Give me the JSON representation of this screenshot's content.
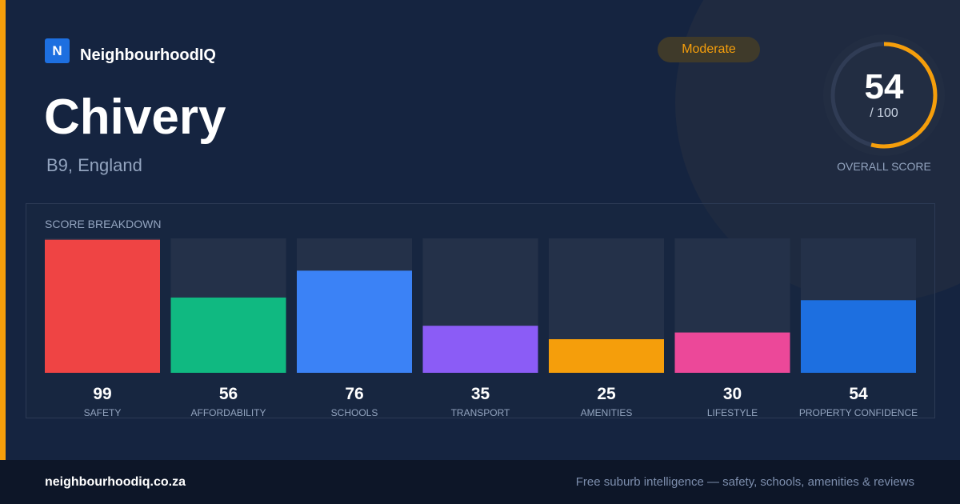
{
  "brand": {
    "logo_letter": "N",
    "name": "NeighbourhoodIQ"
  },
  "location": {
    "name": "Chivery",
    "region": "B9, England"
  },
  "badge": {
    "label": "Moderate"
  },
  "overall": {
    "score": "54",
    "max": "/ 100",
    "label": "OVERALL SCORE",
    "fraction": 0.54
  },
  "panel": {
    "title": "SCORE BREAKDOWN"
  },
  "chart_data": {
    "type": "bar",
    "categories": [
      "SAFETY",
      "AFFORDABILITY",
      "SCHOOLS",
      "TRANSPORT",
      "AMENITIES",
      "LIFESTYLE",
      "PROPERTY CONFIDENCE"
    ],
    "values": [
      99,
      56,
      76,
      35,
      25,
      30,
      54
    ],
    "colors": [
      "#ef4444",
      "#10b981",
      "#3b82f6",
      "#8b5cf6",
      "#f59e0b",
      "#ec4899",
      "#1d6fe0"
    ],
    "ylim": [
      0,
      100
    ]
  },
  "footer": {
    "url": "neighbourhoodiq.co.za",
    "tagline": "Free suburb intelligence — safety, schools, amenities & reviews"
  },
  "colors": {
    "background": "#152440",
    "accent": "#f59e0b",
    "track": "#243149",
    "footer_bg": "#0d1628"
  }
}
